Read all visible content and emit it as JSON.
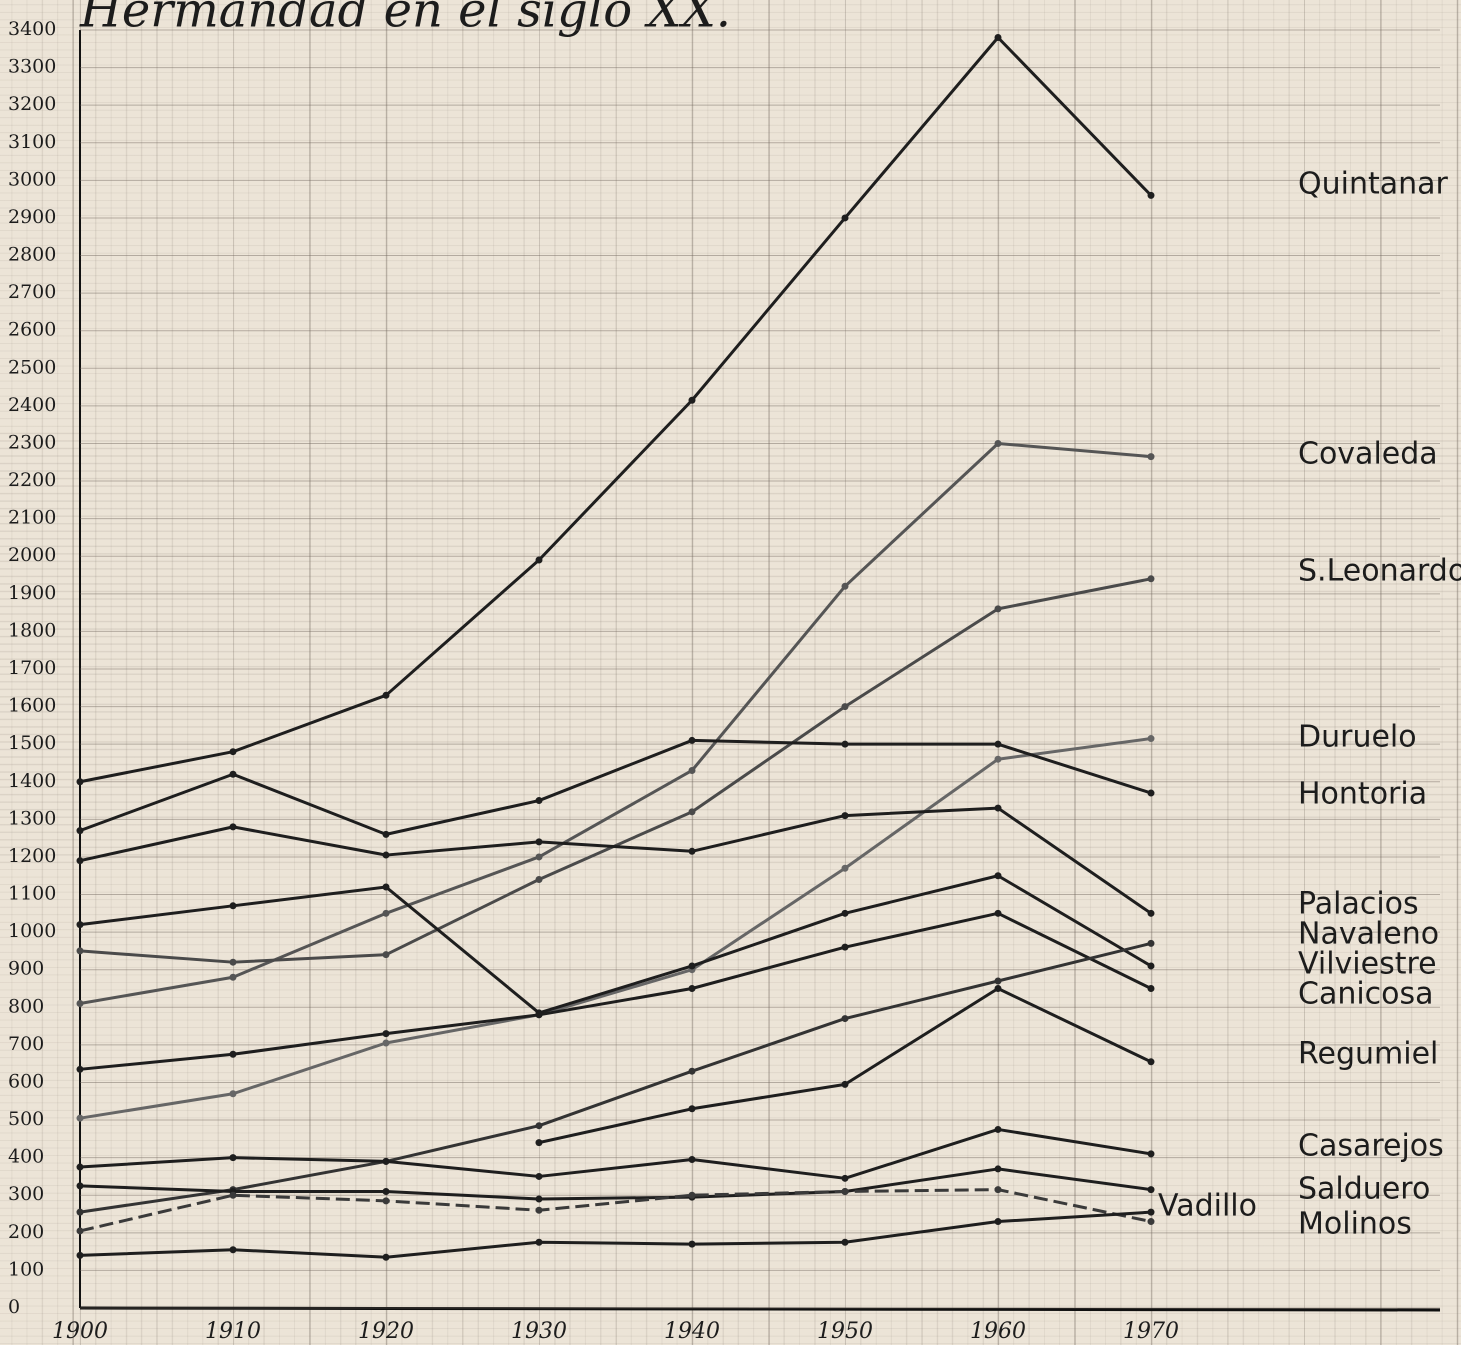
{
  "chart_data": {
    "type": "line",
    "title": "Hermandad en el siglo XX.",
    "categories": [
      "1900",
      "1910",
      "1920",
      "1930",
      "1940",
      "1950",
      "1960",
      "1970"
    ],
    "ylim": [
      0,
      3400
    ],
    "yticks": [
      0,
      100,
      200,
      300,
      400,
      500,
      600,
      700,
      800,
      900,
      1000,
      1100,
      1200,
      1300,
      1400,
      1500,
      1600,
      1700,
      1800,
      1900,
      2000,
      2100,
      2200,
      2300,
      2400,
      2500,
      2600,
      2700,
      2800,
      2900,
      3000,
      3100,
      3200,
      3300,
      3400
    ],
    "grid": true,
    "series": [
      {
        "name": "Quintanar",
        "color": "#1e1e1e",
        "values": [
          1400,
          1480,
          1630,
          1990,
          2415,
          2900,
          3380,
          2960
        ]
      },
      {
        "name": "Covaleda",
        "color": "#555555",
        "values": [
          810,
          880,
          1050,
          1200,
          1430,
          1920,
          2300,
          2265
        ]
      },
      {
        "name": "S.Leonardo",
        "color": "#4a4a4a",
        "values": [
          950,
          920,
          940,
          1140,
          1320,
          1600,
          1860,
          1940
        ]
      },
      {
        "name": "Duruelo",
        "color": "#666666",
        "values": [
          505,
          570,
          705,
          780,
          900,
          1170,
          1460,
          1515
        ]
      },
      {
        "name": "Hontoria",
        "color": "#1e1e1e",
        "values": [
          1270,
          1420,
          1260,
          1350,
          1510,
          1500,
          1500,
          1370
        ]
      },
      {
        "name": "Palacios",
        "color": "#1e1e1e",
        "values": [
          1190,
          1280,
          1205,
          1240,
          1215,
          1310,
          1330,
          1050
        ]
      },
      {
        "name": "Navaleno",
        "color": "#1e1e1e",
        "values": [
          1020,
          1070,
          1120,
          785,
          910,
          1050,
          1150,
          910
        ]
      },
      {
        "name": "Vilviestre",
        "color": "#1e1e1e",
        "values": [
          635,
          675,
          730,
          780,
          850,
          960,
          1050,
          850
        ]
      },
      {
        "name": "Canicosa",
        "color": "#333333",
        "values": [
          255,
          315,
          390,
          485,
          630,
          770,
          870,
          970
        ]
      },
      {
        "name": "Regumiel",
        "color": "#1e1e1e",
        "values": [
          null,
          null,
          null,
          440,
          530,
          595,
          850,
          655
        ]
      },
      {
        "name": "Casarejos",
        "color": "#1e1e1e",
        "values": [
          375,
          400,
          390,
          350,
          395,
          345,
          475,
          410
        ]
      },
      {
        "name": "Salduero",
        "color": "#1e1e1e",
        "values": [
          325,
          310,
          310,
          290,
          295,
          310,
          370,
          315
        ]
      },
      {
        "name": "Vadillo",
        "color": "#3a3a3a",
        "dashed": true,
        "values": [
          205,
          300,
          285,
          260,
          300,
          310,
          315,
          230
        ]
      },
      {
        "name": "Molinos",
        "color": "#1e1e1e",
        "values": [
          140,
          155,
          135,
          175,
          170,
          175,
          230,
          255
        ]
      }
    ]
  }
}
